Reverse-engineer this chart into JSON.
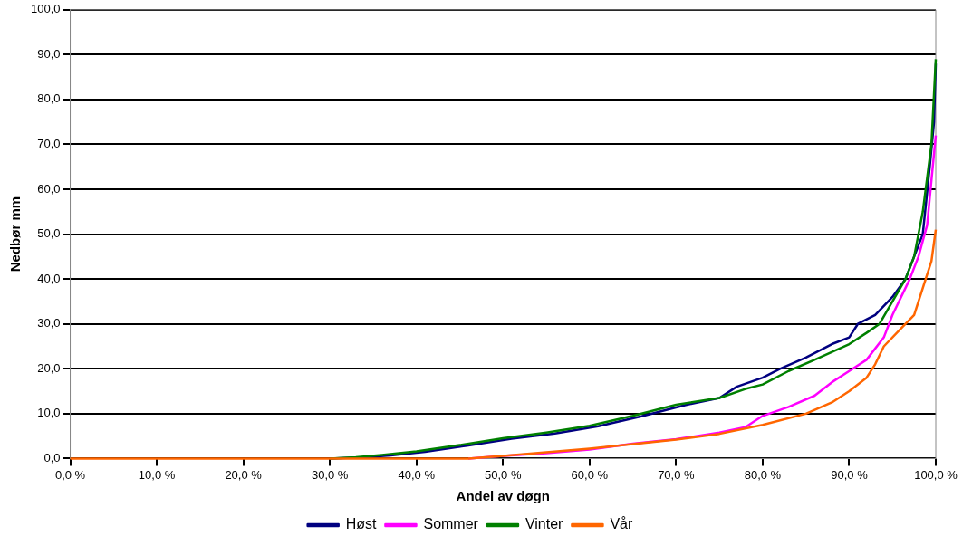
{
  "chart_data": {
    "type": "line",
    "xlabel": "Andel av døgn",
    "ylabel": "Nedbør mm",
    "xlim": [
      0,
      100
    ],
    "xticks": [
      {
        "value": 0,
        "label": "0,0 %"
      },
      {
        "value": 10,
        "label": "10,0 %"
      },
      {
        "value": 20,
        "label": "20,0 %"
      },
      {
        "value": 30,
        "label": "30,0 %"
      },
      {
        "value": 40,
        "label": "40,0 %"
      },
      {
        "value": 50,
        "label": "50,0 %"
      },
      {
        "value": 60,
        "label": "60,0 %"
      },
      {
        "value": 70,
        "label": "70,0 %"
      },
      {
        "value": 80,
        "label": "80,0 %"
      },
      {
        "value": 90,
        "label": "90,0 %"
      },
      {
        "value": 100,
        "label": "100,0 %"
      }
    ],
    "ylim": [
      0,
      100
    ],
    "yticks": [
      {
        "value": 0,
        "label": "0,0"
      },
      {
        "value": 10,
        "label": "10,0"
      },
      {
        "value": 20,
        "label": "20,0"
      },
      {
        "value": 30,
        "label": "30,0"
      },
      {
        "value": 40,
        "label": "40,0"
      },
      {
        "value": 50,
        "label": "50,0"
      },
      {
        "value": 60,
        "label": "60,0"
      },
      {
        "value": 70,
        "label": "70,0"
      },
      {
        "value": 80,
        "label": "80,0"
      },
      {
        "value": 90,
        "label": "90,0"
      },
      {
        "value": 100,
        "label": "100,0"
      }
    ],
    "grid": "y",
    "legend": "bottom",
    "marker": "none",
    "line_style": "solid",
    "series": [
      {
        "name": "Høst",
        "color": "#000080",
        "x": [
          30,
          34,
          37,
          41,
          46,
          51,
          56,
          61,
          66,
          71,
          75,
          77,
          80,
          82,
          85,
          88,
          90,
          91,
          93,
          95,
          96.5,
          97.5,
          98.5,
          99.3,
          99.8,
          100
        ],
        "values": [
          0,
          0.3,
          0.7,
          1.5,
          2.9,
          4.4,
          5.6,
          7.2,
          9.4,
          11.9,
          13.5,
          16,
          18,
          20,
          22.5,
          25.5,
          27,
          30,
          32,
          36,
          40,
          45,
          50,
          65,
          75,
          88
        ]
      },
      {
        "name": "Sommer",
        "color": "#ff00ff",
        "x": [
          46,
          50,
          55,
          60,
          65,
          70,
          75,
          78,
          80,
          83,
          86,
          88,
          90,
          92,
          94,
          95,
          97,
          98,
          99,
          100
        ],
        "values": [
          0,
          0.6,
          1.2,
          2,
          3.3,
          4.3,
          5.8,
          7,
          9.5,
          11.5,
          14,
          17,
          19.5,
          22,
          27,
          32,
          40,
          45,
          52,
          72
        ]
      },
      {
        "name": "Vinter",
        "color": "#008000",
        "x": [
          30,
          33,
          36,
          40,
          45,
          50,
          55,
          60,
          65,
          70,
          75,
          78,
          80,
          83,
          86,
          90,
          92,
          93.5,
          95,
          96.5,
          97.5,
          98.5,
          99.5,
          100
        ],
        "values": [
          0,
          0.3,
          0.8,
          1.6,
          3,
          4.5,
          5.8,
          7.3,
          9.5,
          12,
          13.5,
          15.5,
          16.5,
          19.5,
          22,
          25.5,
          28,
          30,
          35,
          40,
          45,
          55,
          70,
          89
        ]
      },
      {
        "name": "Vår",
        "color": "#ff6600",
        "x": [
          0,
          46,
          50,
          60,
          70,
          75,
          80,
          85,
          88,
          90,
          92,
          93,
          94,
          96,
          97.5,
          98.5,
          99.5,
          100
        ],
        "values": [
          0,
          0,
          0.6,
          2.2,
          4.2,
          5.5,
          7.5,
          10,
          12.5,
          15,
          18,
          21,
          25,
          29,
          32,
          38,
          44,
          51
        ]
      }
    ]
  }
}
